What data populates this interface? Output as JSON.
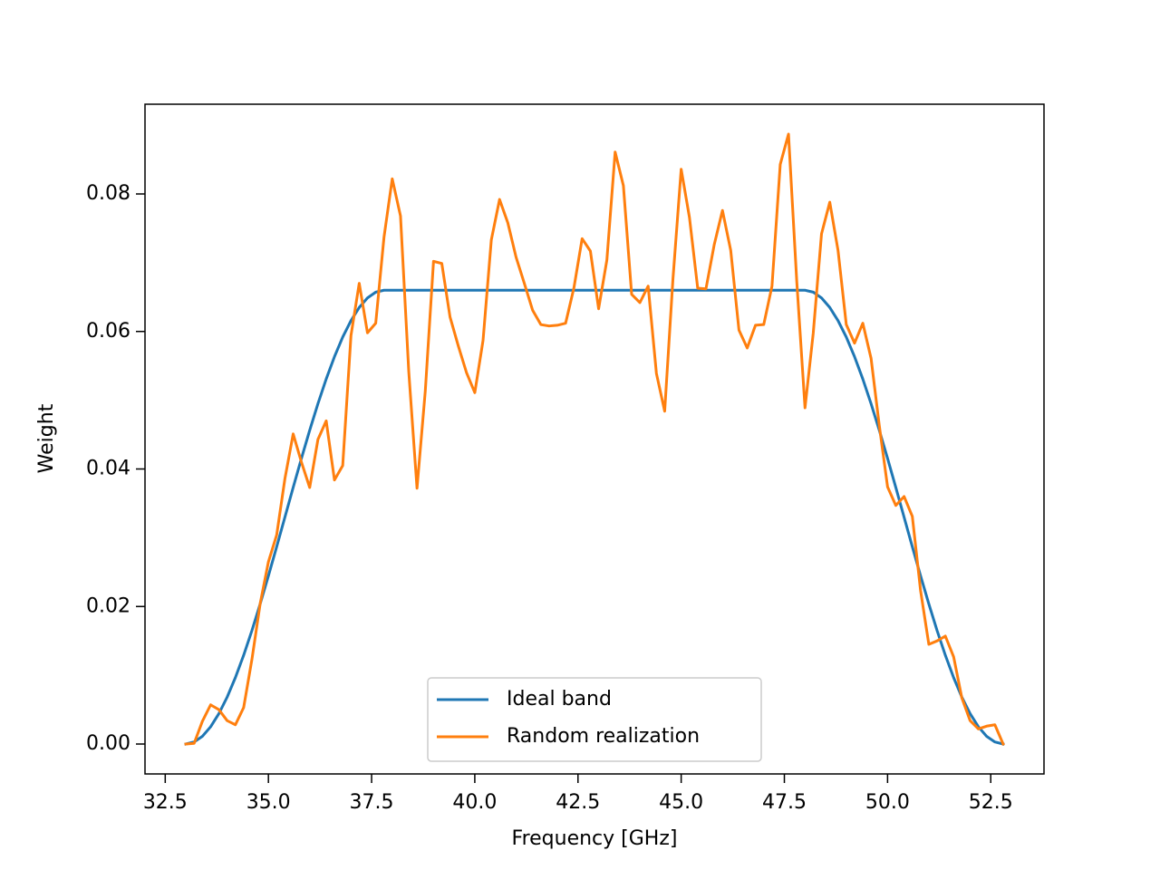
{
  "chart_data": {
    "type": "line",
    "xlabel": "Frequency [GHz]",
    "ylabel": "Weight",
    "x": [
      33.0,
      33.2,
      33.4,
      33.6,
      33.8,
      34.0,
      34.2,
      34.4,
      34.6,
      34.8,
      35.0,
      35.2,
      35.4,
      35.6,
      35.8,
      36.0,
      36.2,
      36.4,
      36.6,
      36.8,
      37.0,
      37.2,
      37.4,
      37.6,
      37.8,
      38.0,
      38.2,
      38.4,
      38.6,
      38.8,
      39.0,
      39.2,
      39.4,
      39.6,
      39.8,
      40.0,
      40.2,
      40.4,
      40.6,
      40.8,
      41.0,
      41.2,
      41.4,
      41.6,
      41.8,
      42.0,
      42.2,
      42.4,
      42.6,
      42.8,
      43.0,
      43.2,
      43.4,
      43.6,
      43.8,
      44.0,
      44.2,
      44.4,
      44.6,
      44.8,
      45.0,
      45.2,
      45.4,
      45.6,
      45.8,
      46.0,
      46.2,
      46.4,
      46.6,
      46.8,
      47.0,
      47.2,
      47.4,
      47.6,
      47.8,
      48.0,
      48.2,
      48.4,
      48.6,
      48.8,
      49.0,
      49.2,
      49.4,
      49.6,
      49.8,
      50.0,
      50.2,
      50.4,
      50.6,
      50.8,
      51.0,
      51.2,
      51.4,
      51.6,
      51.8,
      52.0,
      52.2,
      52.4,
      52.6,
      52.8
    ],
    "series": [
      {
        "name": "Ideal band",
        "color": "#1f77b4",
        "values": [
          0,
          0.0003,
          0.00112,
          0.00251,
          0.00442,
          0.00682,
          0.00967,
          0.01291,
          0.0165,
          0.02037,
          0.02446,
          0.02869,
          0.033,
          0.03731,
          0.04154,
          0.04563,
          0.0495,
          0.05309,
          0.05633,
          0.05918,
          0.06158,
          0.06349,
          0.06488,
          0.06572,
          0.066,
          0.066,
          0.066,
          0.066,
          0.066,
          0.066,
          0.066,
          0.066,
          0.066,
          0.066,
          0.066,
          0.066,
          0.066,
          0.066,
          0.066,
          0.066,
          0.066,
          0.066,
          0.066,
          0.066,
          0.066,
          0.066,
          0.066,
          0.066,
          0.066,
          0.066,
          0.066,
          0.066,
          0.066,
          0.066,
          0.066,
          0.066,
          0.066,
          0.066,
          0.066,
          0.066,
          0.066,
          0.066,
          0.066,
          0.066,
          0.066,
          0.066,
          0.066,
          0.066,
          0.066,
          0.066,
          0.066,
          0.066,
          0.066,
          0.066,
          0.066,
          0.066,
          0.06572,
          0.06488,
          0.06349,
          0.06158,
          0.05918,
          0.05633,
          0.05309,
          0.0495,
          0.04563,
          0.04154,
          0.03731,
          0.033,
          0.02869,
          0.02446,
          0.02037,
          0.0165,
          0.01291,
          0.00967,
          0.00682,
          0.00442,
          0.00251,
          0.00112,
          0.0003,
          0
        ]
      },
      {
        "name": "Random realization",
        "color": "#ff7f0e",
        "values": [
          0,
          0.0001,
          0.0033,
          0.0057,
          0.005,
          0.0034,
          0.0028,
          0.0053,
          0.0123,
          0.0204,
          0.0265,
          0.0304,
          0.0386,
          0.0451,
          0.041,
          0.0373,
          0.0443,
          0.047,
          0.0384,
          0.0405,
          0.0594,
          0.067,
          0.0598,
          0.0612,
          0.0737,
          0.0822,
          0.0768,
          0.0542,
          0.0372,
          0.0513,
          0.0702,
          0.0699,
          0.0621,
          0.0579,
          0.054,
          0.0511,
          0.0587,
          0.0733,
          0.0792,
          0.0758,
          0.0708,
          0.067,
          0.0631,
          0.061,
          0.0608,
          0.0609,
          0.0612,
          0.0663,
          0.0735,
          0.0717,
          0.0633,
          0.0704,
          0.0861,
          0.0812,
          0.0654,
          0.0642,
          0.0666,
          0.0539,
          0.0484,
          0.0676,
          0.0836,
          0.0766,
          0.0663,
          0.0662,
          0.0726,
          0.0776,
          0.0718,
          0.0602,
          0.0576,
          0.0609,
          0.061,
          0.0666,
          0.0843,
          0.0887,
          0.0673,
          0.0489,
          0.0598,
          0.0742,
          0.0788,
          0.0718,
          0.061,
          0.0583,
          0.0612,
          0.0561,
          0.0463,
          0.0374,
          0.0347,
          0.036,
          0.0331,
          0.0223,
          0.0145,
          0.015,
          0.0157,
          0.0127,
          0.0067,
          0.0034,
          0.0022,
          0.0026,
          0.0028,
          0
        ]
      }
    ],
    "xlim": [
      32.01,
      53.79
    ],
    "ylim": [
      -0.00435,
      0.09305
    ],
    "xticks": [
      32.5,
      {
        "value": 35,
        "label": "35.0"
      },
      37.5,
      {
        "value": 40,
        "label": "40.0"
      },
      42.5,
      {
        "value": 45,
        "label": "45.0"
      },
      47.5,
      {
        "value": 50,
        "label": "50.0"
      },
      52.5
    ],
    "yticks": [
      {
        "value": 0,
        "label": "0.00"
      },
      {
        "value": 0.02,
        "label": "0.02"
      },
      {
        "value": 0.04,
        "label": "0.04"
      },
      {
        "value": 0.06,
        "label": "0.06"
      },
      {
        "value": 0.08,
        "label": "0.08"
      }
    ],
    "legend": "lower center",
    "grid": false
  }
}
